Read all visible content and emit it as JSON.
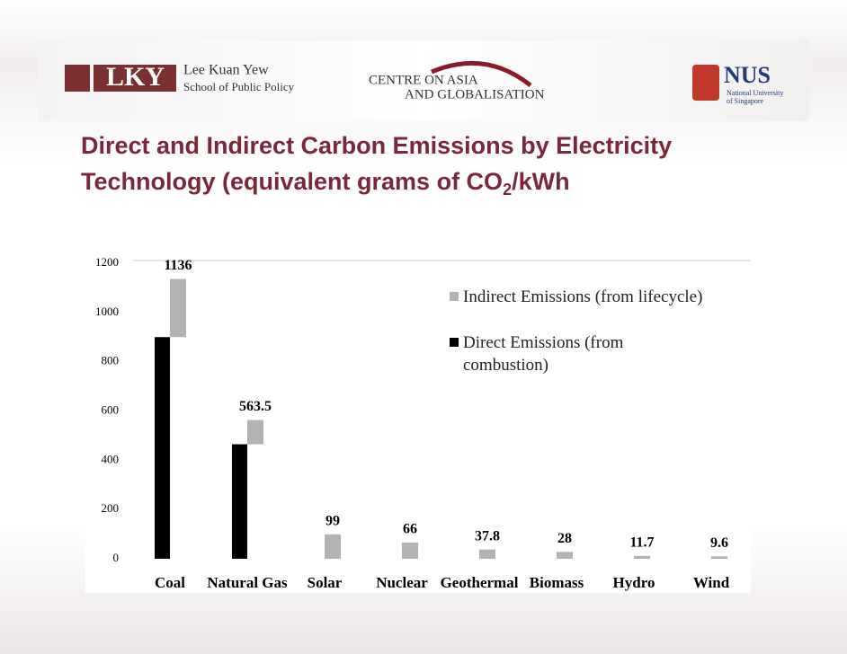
{
  "header": {
    "lkyu_line1": "Lee Kuan Yew",
    "lkyu_line2": "School of Public Policy",
    "centre_line1": "CENTRE ON ASIA",
    "centre_line2": "AND GLOBALISATION",
    "nus": "NUS",
    "nus_sub1": "National University",
    "nus_sub2": "of Singapore"
  },
  "chart_data": {
    "type": "bar",
    "title": [
      "Direct and Indirect Carbon Emissions by Electricity Technology (equivalent grams of CO",
      "2",
      "/kWh"
    ],
    "categories": [
      "Coal",
      "Natural Gas",
      "Solar",
      "Nuclear",
      "Geothermal",
      "Biomass",
      "Hydro",
      "Wind"
    ],
    "series": [
      {
        "name": "Indirect Emissions (from lifecycle)",
        "color": "#b3b3b3",
        "values": [
          236,
          98.5,
          99,
          66,
          37.8,
          28,
          11.7,
          9.6
        ]
      },
      {
        "name": "Direct Emissions (from combustion)",
        "color": "#000000",
        "values": [
          900,
          465,
          0,
          0,
          0,
          0,
          0,
          0
        ]
      }
    ],
    "totals": [
      1136,
      563.5,
      99,
      66,
      37.8,
      28,
      11.7,
      9.6
    ],
    "ylim": [
      0,
      1200
    ],
    "yticks": [
      0,
      200,
      400,
      600,
      800,
      1000,
      1200
    ],
    "grid": false,
    "legend": "upper right"
  }
}
